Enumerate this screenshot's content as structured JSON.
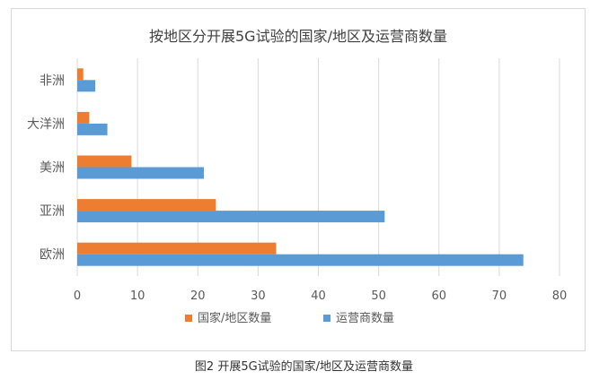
{
  "caption": "图2 开展5G试验的国家/地区及运营商数量",
  "colors": {
    "countries": "#ed7d31",
    "operators": "#5b9bd5",
    "grid": "#d9d9d9",
    "text": "#595959"
  },
  "chart_data": {
    "type": "bar",
    "orientation": "horizontal",
    "title": "按地区分开展5G试验的国家/地区及运营商数量",
    "categories": [
      "非洲",
      "大洋洲",
      "美洲",
      "亚洲",
      "欧洲"
    ],
    "series": [
      {
        "name": "国家/地区数量",
        "values": [
          1,
          2,
          9,
          23,
          33
        ]
      },
      {
        "name": "运营商数量",
        "values": [
          3,
          5,
          21,
          51,
          74
        ]
      }
    ],
    "xlim": [
      0,
      80
    ],
    "xticks": [
      0,
      10,
      20,
      30,
      40,
      50,
      60,
      70,
      80
    ],
    "grid": true,
    "legend_position": "bottom"
  }
}
